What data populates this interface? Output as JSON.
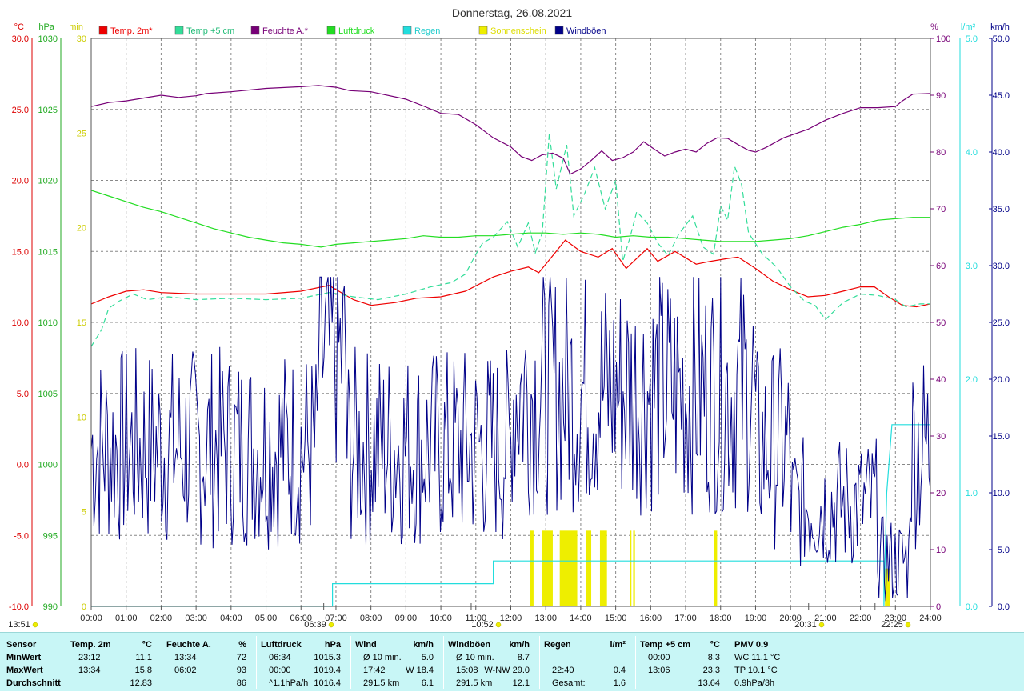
{
  "title": "Donnerstag, 26.08.2021",
  "colors": {
    "temp2m": "#ee0000",
    "temp5cm": "#33dd99",
    "humidity": "#770077",
    "pressure": "#22dd22",
    "rain": "#22dddd",
    "sunshine": "#eeee00",
    "gusts": "#000088",
    "grid": "#888888"
  },
  "legend": [
    {
      "key": "temp2m",
      "label": "Temp. 2m*"
    },
    {
      "key": "temp5cm",
      "label": "Temp +5 cm"
    },
    {
      "key": "humidity",
      "label": "Feuchte A.*"
    },
    {
      "key": "pressure",
      "label": "Luftdruck"
    },
    {
      "key": "rain",
      "label": "Regen"
    },
    {
      "key": "sunshine",
      "label": "Sonnenschein"
    },
    {
      "key": "gusts",
      "label": "Windböen"
    }
  ],
  "axis_units": {
    "temp": "°C",
    "pressure": "hPa",
    "sun": "min",
    "humidity": "%",
    "rain": "l/m²",
    "wind": "km/h"
  },
  "axes": {
    "temp": [
      "30.0",
      "25.0",
      "20.0",
      "15.0",
      "10.0",
      "5.0",
      "0.0",
      "-5.0",
      "-10.0"
    ],
    "pressure": [
      "1030",
      "1025",
      "1020",
      "1015",
      "1010",
      "1005",
      "1000",
      "995",
      "990"
    ],
    "sun": [
      "30",
      "25",
      "20",
      "15",
      "10",
      "5",
      "0"
    ],
    "humidity": [
      "100",
      "90",
      "80",
      "70",
      "60",
      "50",
      "40",
      "30",
      "20",
      "10",
      "0"
    ],
    "rain": [
      "5.0",
      "4.0",
      "3.0",
      "2.0",
      "1.0",
      "0.0"
    ],
    "wind": [
      "50.0",
      "45.0",
      "40.0",
      "35.0",
      "30.0",
      "25.0",
      "20.0",
      "15.0",
      "10.0",
      "5.0",
      "0.0"
    ]
  },
  "x_ticks": [
    "00:00",
    "01:00",
    "02:00",
    "03:00",
    "04:00",
    "05:00",
    "06:00",
    "07:00",
    "08:00",
    "09:00",
    "10:00",
    "11:00",
    "12:00",
    "13:00",
    "14:00",
    "15:00",
    "16:00",
    "17:00",
    "18:00",
    "19:00",
    "20:00",
    "21:00",
    "22:00",
    "23:00",
    "24:00"
  ],
  "markers": [
    {
      "time": "13:51",
      "kind": "moon"
    },
    {
      "time": "06:39",
      "kind": "sunrise"
    },
    {
      "time": "10:52",
      "kind": "noon"
    },
    {
      "time": "20:31",
      "kind": "sunset"
    },
    {
      "time": "22:25",
      "kind": "moon"
    }
  ],
  "chart_data": {
    "type": "line",
    "x_unit": "hours",
    "xlim": [
      0,
      24
    ],
    "series": [
      {
        "name": "Temp. 2m*",
        "axis": "temp",
        "ylim": [
          -10,
          30
        ],
        "points": [
          [
            0,
            11.3
          ],
          [
            0.5,
            11.8
          ],
          [
            1,
            12.2
          ],
          [
            1.5,
            12.3
          ],
          [
            2,
            12.1
          ],
          [
            3,
            12.0
          ],
          [
            4,
            12.0
          ],
          [
            5,
            12.0
          ],
          [
            6,
            12.2
          ],
          [
            6.8,
            12.6
          ],
          [
            7.5,
            11.6
          ],
          [
            8,
            11.2
          ],
          [
            8.7,
            11.4
          ],
          [
            9.3,
            11.7
          ],
          [
            10,
            11.8
          ],
          [
            10.7,
            12.2
          ],
          [
            11.5,
            13.2
          ],
          [
            12,
            13.6
          ],
          [
            12.5,
            13.9
          ],
          [
            12.8,
            13.5
          ],
          [
            13.2,
            14.7
          ],
          [
            13.56,
            15.8
          ],
          [
            14,
            15.0
          ],
          [
            14.5,
            14.6
          ],
          [
            14.9,
            15.2
          ],
          [
            15.3,
            13.8
          ],
          [
            15.6,
            14.5
          ],
          [
            15.9,
            15.2
          ],
          [
            16.2,
            14.3
          ],
          [
            16.7,
            15.0
          ],
          [
            17.3,
            14.1
          ],
          [
            17.7,
            14.3
          ],
          [
            18.2,
            14.5
          ],
          [
            18.5,
            14.6
          ],
          [
            19,
            13.8
          ],
          [
            19.5,
            12.9
          ],
          [
            20,
            12.3
          ],
          [
            20.5,
            11.8
          ],
          [
            21,
            11.9
          ],
          [
            21.5,
            12.2
          ],
          [
            22,
            12.5
          ],
          [
            22.4,
            12.5
          ],
          [
            22.8,
            11.8
          ],
          [
            23.2,
            11.2
          ],
          [
            23.6,
            11.1
          ],
          [
            24,
            11.3
          ]
        ]
      },
      {
        "name": "Temp +5 cm",
        "axis": "temp",
        "ylim": [
          -10,
          30
        ],
        "points": [
          [
            0,
            8.3
          ],
          [
            0.3,
            9.5
          ],
          [
            0.5,
            11.0
          ],
          [
            0.8,
            11.5
          ],
          [
            1.2,
            12.0
          ],
          [
            1.6,
            11.6
          ],
          [
            2.2,
            11.8
          ],
          [
            3,
            11.6
          ],
          [
            4,
            11.7
          ],
          [
            5,
            11.6
          ],
          [
            6,
            11.7
          ],
          [
            6.8,
            12.1
          ],
          [
            7.5,
            11.8
          ],
          [
            8.2,
            11.6
          ],
          [
            9,
            12.0
          ],
          [
            9.7,
            12.5
          ],
          [
            10.3,
            12.8
          ],
          [
            10.7,
            13.4
          ],
          [
            11,
            14.8
          ],
          [
            11.2,
            15.6
          ],
          [
            11.5,
            16.0
          ],
          [
            11.9,
            17.1
          ],
          [
            12.2,
            15.3
          ],
          [
            12.5,
            17.0
          ],
          [
            12.7,
            14.9
          ],
          [
            12.9,
            16.3
          ],
          [
            13.1,
            23.3
          ],
          [
            13.3,
            19.4
          ],
          [
            13.6,
            22.5
          ],
          [
            13.8,
            17.5
          ],
          [
            14.1,
            19.0
          ],
          [
            14.4,
            20.9
          ],
          [
            14.7,
            18.0
          ],
          [
            15.0,
            20.0
          ],
          [
            15.2,
            14.3
          ],
          [
            15.4,
            15.9
          ],
          [
            15.6,
            17.8
          ],
          [
            15.9,
            17.0
          ],
          [
            16.2,
            15.6
          ],
          [
            16.5,
            14.7
          ],
          [
            16.8,
            16.2
          ],
          [
            17.2,
            17.5
          ],
          [
            17.5,
            15.3
          ],
          [
            17.8,
            14.8
          ],
          [
            18.0,
            18.2
          ],
          [
            18.2,
            17.2
          ],
          [
            18.4,
            21.0
          ],
          [
            18.6,
            19.7
          ],
          [
            18.8,
            16.3
          ],
          [
            19.2,
            14.8
          ],
          [
            19.6,
            13.9
          ],
          [
            20.0,
            12.5
          ],
          [
            20.4,
            11.5
          ],
          [
            20.7,
            11.2
          ],
          [
            21.0,
            10.2
          ],
          [
            21.5,
            11.4
          ],
          [
            22.0,
            12.0
          ],
          [
            22.5,
            11.9
          ],
          [
            23.0,
            11.6
          ],
          [
            23.3,
            11.1
          ],
          [
            23.7,
            11.3
          ],
          [
            24,
            11.3
          ]
        ]
      },
      {
        "name": "Feuchte A.*",
        "axis": "humidity",
        "ylim": [
          0,
          100
        ],
        "points": [
          [
            0,
            88.0
          ],
          [
            0.5,
            88.7
          ],
          [
            1,
            89.0
          ],
          [
            2,
            90.0
          ],
          [
            2.5,
            89.6
          ],
          [
            3,
            89.9
          ],
          [
            3.3,
            90.3
          ],
          [
            4,
            90.6
          ],
          [
            5,
            91.2
          ],
          [
            6,
            91.5
          ],
          [
            6.5,
            91.7
          ],
          [
            7,
            91.4
          ],
          [
            7.4,
            90.8
          ],
          [
            8,
            90.6
          ],
          [
            9,
            89.3
          ],
          [
            9.5,
            88.1
          ],
          [
            10,
            86.8
          ],
          [
            10.5,
            86.6
          ],
          [
            11,
            84.8
          ],
          [
            11.5,
            82.5
          ],
          [
            12,
            80.9
          ],
          [
            12.3,
            79.2
          ],
          [
            12.6,
            78.5
          ],
          [
            12.9,
            79.5
          ],
          [
            13.2,
            79.8
          ],
          [
            13.5,
            78.9
          ],
          [
            13.7,
            76.1
          ],
          [
            14.0,
            77.0
          ],
          [
            14.3,
            78.5
          ],
          [
            14.6,
            80.2
          ],
          [
            14.9,
            78.5
          ],
          [
            15.2,
            79.0
          ],
          [
            15.5,
            80.0
          ],
          [
            15.8,
            81.8
          ],
          [
            16.1,
            80.5
          ],
          [
            16.4,
            79.3
          ],
          [
            16.7,
            80.0
          ],
          [
            17.0,
            80.5
          ],
          [
            17.3,
            80.0
          ],
          [
            17.6,
            81.5
          ],
          [
            17.9,
            82.5
          ],
          [
            18.2,
            82.4
          ],
          [
            18.5,
            81.3
          ],
          [
            18.8,
            80.3
          ],
          [
            19.0,
            80.0
          ],
          [
            19.3,
            80.8
          ],
          [
            19.8,
            82.5
          ],
          [
            20.5,
            84.0
          ],
          [
            21,
            85.6
          ],
          [
            21.5,
            86.8
          ],
          [
            22,
            87.8
          ],
          [
            22.5,
            87.8
          ],
          [
            23,
            88.0
          ],
          [
            23.2,
            89.0
          ],
          [
            23.5,
            90.2
          ],
          [
            24,
            90.3
          ]
        ]
      },
      {
        "name": "Luftdruck",
        "axis": "pressure",
        "ylim": [
          990,
          1030
        ],
        "points": [
          [
            0,
            1019.3
          ],
          [
            0.5,
            1018.9
          ],
          [
            1,
            1018.5
          ],
          [
            1.5,
            1018.1
          ],
          [
            2,
            1017.8
          ],
          [
            2.5,
            1017.4
          ],
          [
            3,
            1017.0
          ],
          [
            3.5,
            1016.6
          ],
          [
            4,
            1016.3
          ],
          [
            4.5,
            1016.0
          ],
          [
            5,
            1015.8
          ],
          [
            5.5,
            1015.6
          ],
          [
            6,
            1015.5
          ],
          [
            6.57,
            1015.3
          ],
          [
            7,
            1015.5
          ],
          [
            7.5,
            1015.6
          ],
          [
            8,
            1015.7
          ],
          [
            8.5,
            1015.8
          ],
          [
            9,
            1015.9
          ],
          [
            9.5,
            1016.1
          ],
          [
            10,
            1016.0
          ],
          [
            10.5,
            1016.0
          ],
          [
            11,
            1016.1
          ],
          [
            11.5,
            1016.1
          ],
          [
            12,
            1016.2
          ],
          [
            12.5,
            1016.3
          ],
          [
            13,
            1016.3
          ],
          [
            13.5,
            1016.2
          ],
          [
            14,
            1016.3
          ],
          [
            14.5,
            1016.2
          ],
          [
            15,
            1016.0
          ],
          [
            15.5,
            1016.1
          ],
          [
            16,
            1016.0
          ],
          [
            16.5,
            1016.0
          ],
          [
            17,
            1015.9
          ],
          [
            17.5,
            1015.8
          ],
          [
            18,
            1015.7
          ],
          [
            18.5,
            1015.7
          ],
          [
            19,
            1015.7
          ],
          [
            19.5,
            1015.8
          ],
          [
            20,
            1015.9
          ],
          [
            20.5,
            1016.1
          ],
          [
            21,
            1016.4
          ],
          [
            21.5,
            1016.7
          ],
          [
            22,
            1016.9
          ],
          [
            22.5,
            1017.2
          ],
          [
            23,
            1017.3
          ],
          [
            23.5,
            1017.4
          ],
          [
            24,
            1017.4
          ]
        ]
      },
      {
        "name": "Regen",
        "axis": "rain",
        "ylim": [
          0,
          5
        ],
        "points": [
          [
            0,
            0
          ],
          [
            6.9,
            0
          ],
          [
            6.9,
            0.2
          ],
          [
            11.5,
            0.2
          ],
          [
            11.5,
            0.4
          ],
          [
            22.67,
            0.4
          ],
          [
            22.67,
            0.0
          ],
          [
            22.75,
            1.0
          ],
          [
            22.9,
            1.6
          ],
          [
            24,
            1.6
          ]
        ]
      },
      {
        "name": "Sonnenschein",
        "axis": "sun",
        "ylim": [
          0,
          30
        ],
        "bars": [
          [
            12.55,
            12.65,
            4
          ],
          [
            12.9,
            13.2,
            4
          ],
          [
            13.4,
            13.9,
            4
          ],
          [
            14.15,
            14.3,
            4
          ],
          [
            14.55,
            14.75,
            4
          ],
          [
            15.4,
            15.45,
            4
          ],
          [
            15.5,
            15.55,
            4
          ],
          [
            17.8,
            17.9,
            4
          ],
          [
            22.7,
            22.85,
            2
          ]
        ]
      },
      {
        "name": "Windböen",
        "axis": "wind",
        "ylim": [
          0,
          50
        ]
      }
    ]
  },
  "stats": {
    "columns": [
      {
        "header": "Sensor",
        "rows": [
          "MinWert",
          "MaxWert",
          "Durchschnitt"
        ]
      },
      {
        "header": "Temp. 2m",
        "unit": "°C",
        "rows": [
          [
            "23:12",
            "11.1"
          ],
          [
            "13:34",
            "15.8"
          ],
          [
            "",
            "12.83"
          ]
        ]
      },
      {
        "header": "Feuchte A.",
        "unit": "%",
        "rows": [
          [
            "13:34",
            "72"
          ],
          [
            "06:02",
            "93"
          ],
          [
            "",
            "86"
          ]
        ]
      },
      {
        "header": "Luftdruck",
        "unit": "hPa",
        "rows": [
          [
            "06:34",
            "1015.3"
          ],
          [
            "00:00",
            "1019.4"
          ],
          [
            "^1.1hPa/h",
            "1016.4"
          ]
        ]
      },
      {
        "header": "Wind",
        "unit": "km/h",
        "rows": [
          [
            "Ø 10 min.",
            "5.0"
          ],
          [
            "17:42",
            "W 18.4"
          ],
          [
            "291.5 km",
            "6.1"
          ]
        ]
      },
      {
        "header": "Windböen",
        "unit": "km/h",
        "rows": [
          [
            "Ø 10 min.",
            "8.7"
          ],
          [
            "15:08",
            "W-NW 29.0"
          ],
          [
            "291.5 km",
            "12.1"
          ]
        ]
      },
      {
        "header": "Regen",
        "unit": "l/m²",
        "rows": [
          [
            "",
            ""
          ],
          [
            "22:40",
            "0.4"
          ],
          [
            "Gesamt:",
            "1.6"
          ]
        ]
      },
      {
        "header": "Temp +5 cm",
        "unit": "°C",
        "rows": [
          [
            "00:00",
            "8.3"
          ],
          [
            "13:06",
            "23.3"
          ],
          [
            "",
            "13.64"
          ]
        ]
      },
      {
        "header": "PMV 0.9",
        "unit": "",
        "rows": [
          "WC 11.1 °C",
          "TP 10.1 °C",
          "0.9hPa/3h"
        ]
      }
    ]
  }
}
